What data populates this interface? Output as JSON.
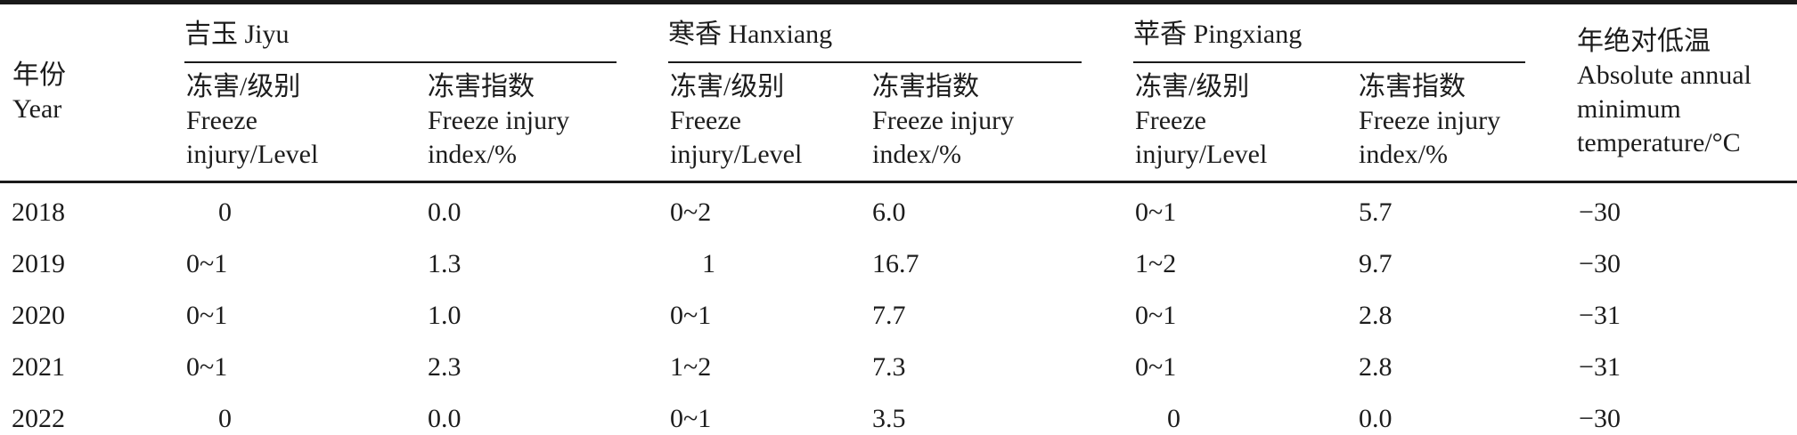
{
  "table": {
    "year_header": {
      "lines": [
        "年份",
        "Year"
      ]
    },
    "groups": [
      {
        "name": "吉玉 Jiyu"
      },
      {
        "name": "寒香 Hanxiang"
      },
      {
        "name": "苹香 Pingxiang"
      }
    ],
    "sub_level": {
      "lines": [
        "冻害/级别",
        "Freeze",
        "injury/Level"
      ]
    },
    "sub_index": {
      "lines": [
        "冻害指数",
        "Freeze injury",
        "index/%"
      ]
    },
    "temp_header": {
      "lines": [
        "年绝对低温",
        "Absolute annual",
        "minimum",
        "temperature/°C"
      ]
    },
    "rows": [
      {
        "year": "2018",
        "jiyu_level": "0",
        "jiyu_index": "0.0",
        "hanxiang_level": "0~2",
        "hanxiang_index": "6.0",
        "pingxiang_level": "0~1",
        "pingxiang_index": "5.7",
        "temp": "−30"
      },
      {
        "year": "2019",
        "jiyu_level": "0~1",
        "jiyu_index": "1.3",
        "hanxiang_level": "1",
        "hanxiang_index": "16.7",
        "pingxiang_level": "1~2",
        "pingxiang_index": "9.7",
        "temp": "−30"
      },
      {
        "year": "2020",
        "jiyu_level": "0~1",
        "jiyu_index": "1.0",
        "hanxiang_level": "0~1",
        "hanxiang_index": "7.7",
        "pingxiang_level": "0~1",
        "pingxiang_index": "2.8",
        "temp": "−31"
      },
      {
        "year": "2021",
        "jiyu_level": "0~1",
        "jiyu_index": "2.3",
        "hanxiang_level": "1~2",
        "hanxiang_index": "7.3",
        "pingxiang_level": "0~1",
        "pingxiang_index": "2.8",
        "temp": "−31"
      },
      {
        "year": "2022",
        "jiyu_level": "0",
        "jiyu_index": "0.0",
        "hanxiang_level": "0~1",
        "hanxiang_index": "3.5",
        "pingxiang_level": "0",
        "pingxiang_index": "0.0",
        "temp": "−30"
      }
    ]
  }
}
